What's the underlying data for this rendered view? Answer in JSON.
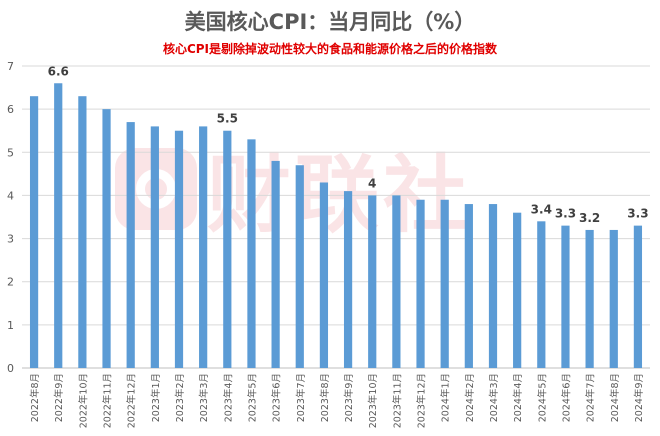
{
  "chart_data": {
    "type": "bar",
    "title": "美国核心CPI：当月同比（%）",
    "subtitle": "核心CPI是剔除掉波动性较大的食品和能源价格之后的价格指数",
    "xlabel": "",
    "ylabel": "",
    "ylim": [
      0,
      7
    ],
    "yticks": [
      0,
      1,
      2,
      3,
      4,
      5,
      6,
      7
    ],
    "grid": true,
    "legend": "none",
    "bar_color": "#5b9bd5",
    "categories": [
      "2022年8月",
      "2022年9月",
      "2022年10月",
      "2022年11月",
      "2022年12月",
      "2023年1月",
      "2023年2月",
      "2023年3月",
      "2023年4月",
      "2023年5月",
      "2023年6月",
      "2023年7月",
      "2023年8月",
      "2023年9月",
      "2023年10月",
      "2023年11月",
      "2023年12月",
      "2024年1月",
      "2024年2月",
      "2024年3月",
      "2024年4月",
      "2024年5月",
      "2024年6月",
      "2024年7月",
      "2024年8月",
      "2024年9月"
    ],
    "values": [
      6.3,
      6.6,
      6.3,
      6.0,
      5.7,
      5.6,
      5.5,
      5.6,
      5.5,
      5.3,
      4.8,
      4.7,
      4.3,
      4.1,
      4.0,
      4.0,
      3.9,
      3.9,
      3.8,
      3.8,
      3.6,
      3.4,
      3.3,
      3.2,
      3.2,
      3.3
    ],
    "data_labels": [
      {
        "index": 1,
        "text": "6.6"
      },
      {
        "index": 8,
        "text": "5.5"
      },
      {
        "index": 14,
        "text": "4"
      },
      {
        "index": 21,
        "text": "3.4"
      },
      {
        "index": 22,
        "text": "3.3"
      },
      {
        "index": 23,
        "text": "3.2"
      },
      {
        "index": 25,
        "text": "3.3"
      }
    ]
  },
  "watermark": {
    "text": "财联社"
  }
}
